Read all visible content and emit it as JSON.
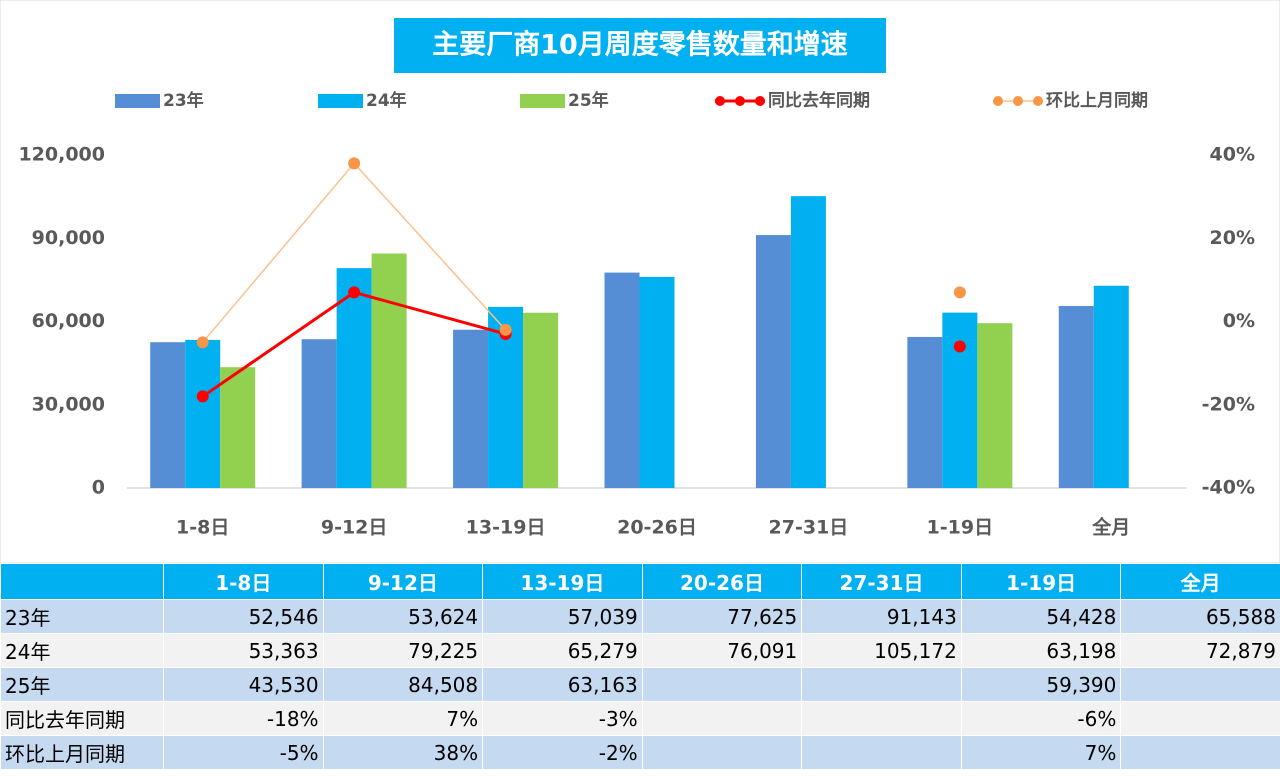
{
  "chart_data": {
    "type": "bar",
    "title": "主要厂商10月周度零售数量和增速",
    "categories": [
      "1-8日",
      "9-12日",
      "13-19日",
      "20-26日",
      "27-31日",
      "1-19日",
      "全月"
    ],
    "series": [
      {
        "name": "23年",
        "type": "bar",
        "color": "#558ed5",
        "values": [
          52546,
          53624,
          57039,
          77625,
          91143,
          54428,
          65588
        ],
        "value_labels": [
          "52,546",
          "53,624",
          "57,039",
          "77,625",
          "91,143",
          "54,428",
          "65,588"
        ]
      },
      {
        "name": "24年",
        "type": "bar",
        "color": "#00b0f0",
        "values": [
          53363,
          79225,
          65279,
          76091,
          105172,
          63198,
          72879
        ],
        "value_labels": [
          "53,363",
          "79,225",
          "65,279",
          "76,091",
          "105,172",
          "63,198",
          "72,879"
        ]
      },
      {
        "name": "25年",
        "type": "bar",
        "color": "#92d050",
        "values": [
          43530,
          84508,
          63163,
          null,
          null,
          59390,
          null
        ],
        "value_labels": [
          "43,530",
          "84,508",
          "63,163",
          null,
          null,
          "59,390",
          null
        ]
      },
      {
        "name": "同比去年同期",
        "type": "line",
        "axis": "y2",
        "color": "#ff0000",
        "marker_color": "#ff0000",
        "values": [
          -18,
          7,
          -3,
          null,
          null,
          -6,
          null
        ],
        "value_labels": [
          "-18%",
          "7%",
          "-3%",
          null,
          null,
          "-6%",
          null
        ]
      },
      {
        "name": "环比上月同期",
        "type": "line",
        "axis": "y2",
        "color": "#fac090",
        "marker_color": "#f79646",
        "values": [
          -5,
          38,
          -2,
          null,
          null,
          7,
          null
        ],
        "value_labels": [
          "-5%",
          "38%",
          "-2%",
          null,
          null,
          "7%",
          null
        ]
      }
    ],
    "ylim": [
      0,
      120000
    ],
    "yticks": [
      0,
      {
        "value": 30000,
        "label": "30,000"
      },
      {
        "value": 60000,
        "label": "60,000"
      },
      {
        "value": 90000,
        "label": "90,000"
      },
      {
        "value": 120000,
        "label": "120,000"
      }
    ],
    "y2lim": [
      -40,
      40
    ],
    "y2ticks": [
      {
        "value": -40,
        "label": "-40%"
      },
      {
        "value": -20,
        "label": "-20%"
      },
      {
        "value": 0,
        "label": "0%"
      },
      {
        "value": 20,
        "label": "20%"
      },
      {
        "value": 40,
        "label": "40%"
      }
    ],
    "grid": false,
    "legend": "top"
  }
}
